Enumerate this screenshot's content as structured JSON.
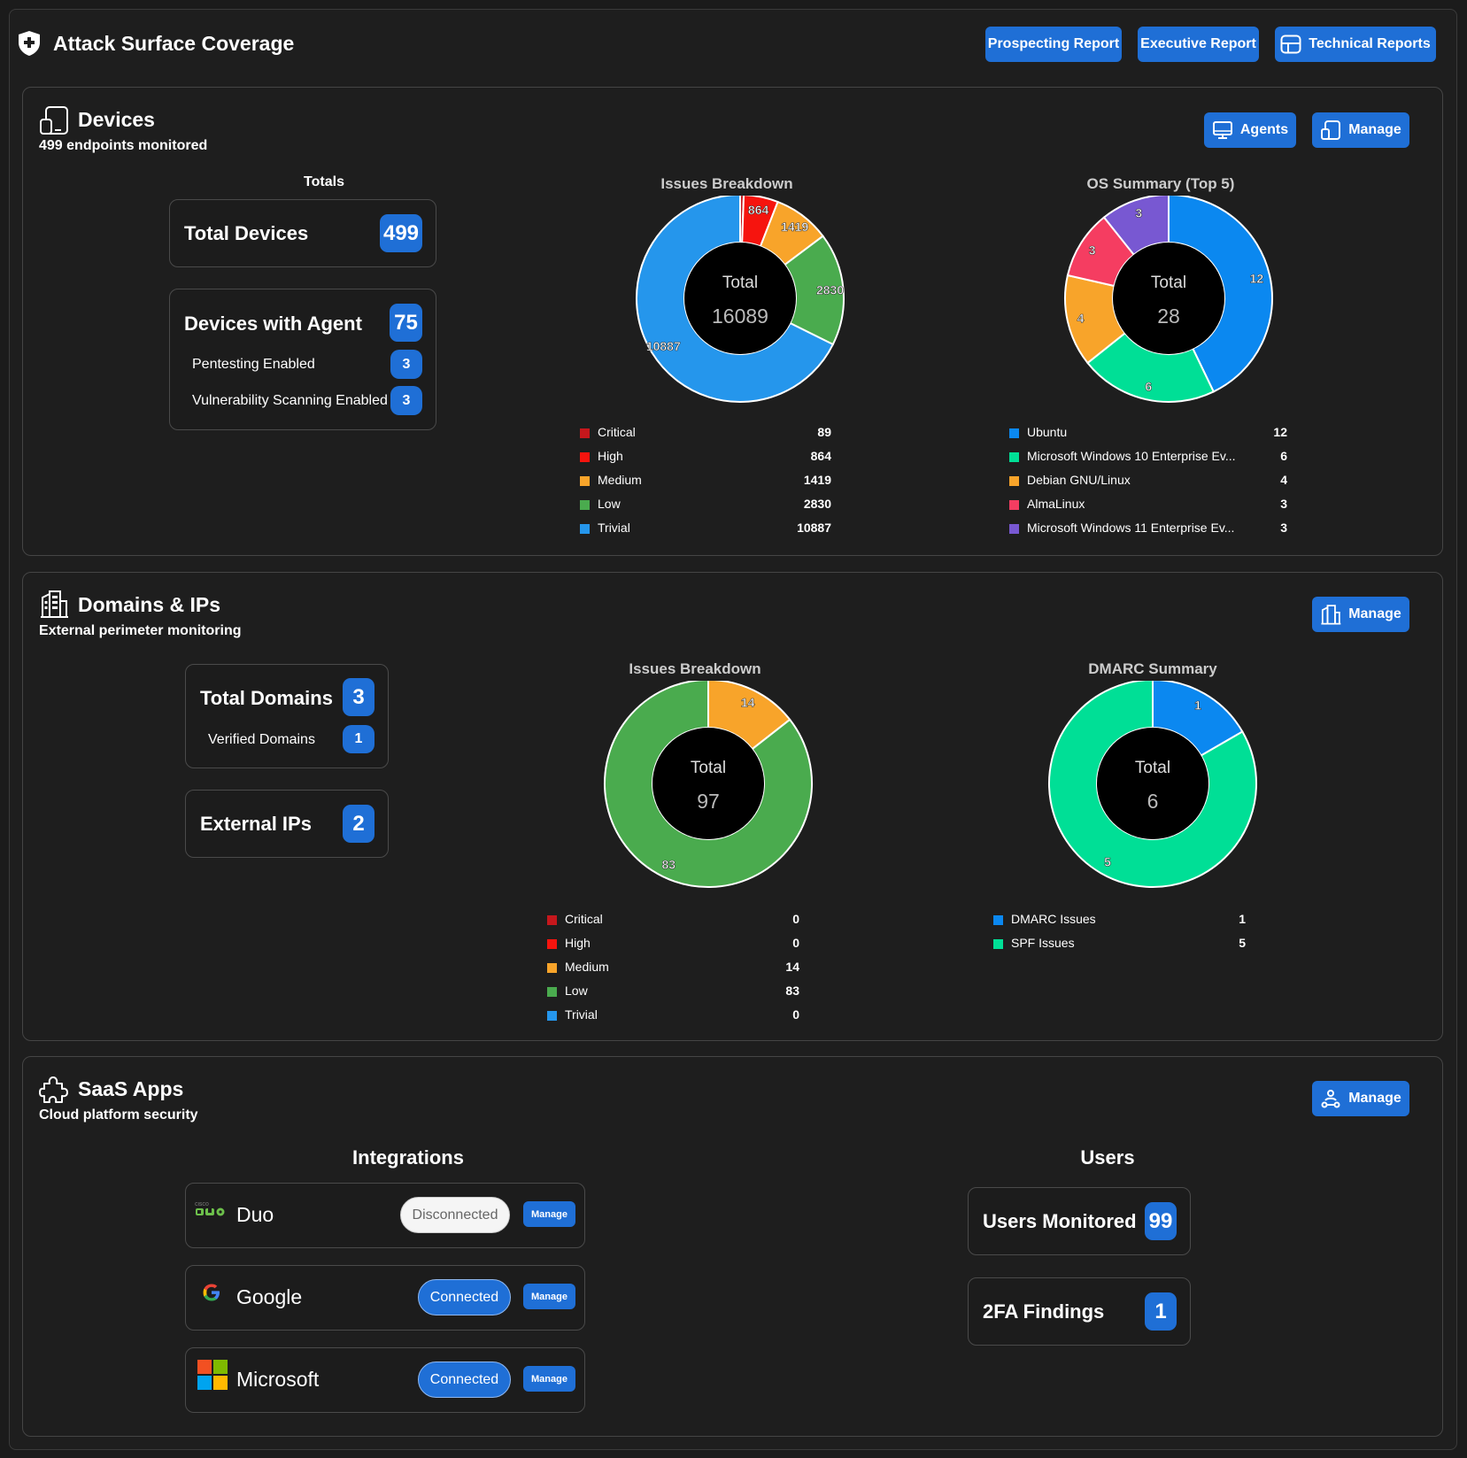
{
  "header": {
    "title": "Attack Surface Coverage",
    "buttons": {
      "prospecting": "Prospecting Report",
      "executive": "Executive Report",
      "technical": "Technical Reports"
    }
  },
  "devices": {
    "title": "Devices",
    "subtitle": "499 endpoints monitored",
    "agents_label": "Agents",
    "manage_label": "Manage",
    "totals_heading": "Totals",
    "total_devices_label": "Total Devices",
    "total_devices_value": "499",
    "with_agent_label": "Devices with Agent",
    "with_agent_value": "75",
    "pentesting_label": "Pentesting Enabled",
    "pentesting_value": "3",
    "vuln_label": "Vulnerability Scanning Enabled",
    "vuln_value": "3"
  },
  "domains": {
    "title": "Domains & IPs",
    "subtitle": "External perimeter monitoring",
    "manage_label": "Manage",
    "total_domains_label": "Total Domains",
    "total_domains_value": "3",
    "verified_label": "Verified Domains",
    "verified_value": "1",
    "external_ips_label": "External IPs",
    "external_ips_value": "2"
  },
  "saas": {
    "title": "SaaS Apps",
    "subtitle": "Cloud platform security",
    "manage_label": "Manage",
    "integrations_heading": "Integrations",
    "users_heading": "Users",
    "integrations": [
      {
        "name": "Duo",
        "status": "Disconnected",
        "manage": "Manage",
        "logo": "duo-logo"
      },
      {
        "name": "Google",
        "status": "Connected",
        "manage": "Manage",
        "logo": "google-logo"
      },
      {
        "name": "Microsoft",
        "status": "Connected",
        "manage": "Manage",
        "logo": "microsoft-logo"
      }
    ],
    "users_monitored_label": "Users Monitored",
    "users_monitored_value": "99",
    "twofa_label": "2FA Findings",
    "twofa_value": "1"
  },
  "colors": {
    "accent": "#1f6fd6",
    "critical": "#c6171c",
    "high": "#f6140e",
    "medium": "#f8a42a",
    "low": "#4aab4e",
    "trivial": "#2596ec",
    "teal": "#00df96",
    "pink": "#f53d61",
    "purple": "#7858d2"
  },
  "chart_data": [
    {
      "type": "pie",
      "title": "Issues Breakdown",
      "center_label": "Total",
      "total": "16089",
      "slices": [
        {
          "name": "Critical",
          "value": 89,
          "color": "#c6171c"
        },
        {
          "name": "High",
          "value": 864,
          "color": "#f6140e"
        },
        {
          "name": "Medium",
          "value": 1419,
          "color": "#f8a42a"
        },
        {
          "name": "Low",
          "value": 2830,
          "color": "#4aab4e"
        },
        {
          "name": "Trivial",
          "value": 10887,
          "color": "#2596ec"
        }
      ]
    },
    {
      "type": "pie",
      "title": "OS Summary (Top 5)",
      "center_label": "Total",
      "total": "28",
      "slices": [
        {
          "name": "Ubuntu",
          "value": 12,
          "color": "#0b88f0"
        },
        {
          "name": "Microsoft Windows 10 Enterprise Ev...",
          "value": 6,
          "color": "#00df96"
        },
        {
          "name": "Debian GNU/Linux",
          "value": 4,
          "color": "#f8a42a"
        },
        {
          "name": "AlmaLinux",
          "value": 3,
          "color": "#f53d61"
        },
        {
          "name": "Microsoft Windows 11 Enterprise Ev...",
          "value": 3,
          "color": "#7858d2"
        }
      ]
    },
    {
      "type": "pie",
      "title": "Issues Breakdown",
      "center_label": "Total",
      "total": "97",
      "slices": [
        {
          "name": "Critical",
          "value": 0,
          "color": "#c6171c"
        },
        {
          "name": "High",
          "value": 0,
          "color": "#f6140e"
        },
        {
          "name": "Medium",
          "value": 14,
          "color": "#f8a42a"
        },
        {
          "name": "Low",
          "value": 83,
          "color": "#4aab4e"
        },
        {
          "name": "Trivial",
          "value": 0,
          "color": "#2596ec"
        }
      ]
    },
    {
      "type": "pie",
      "title": "DMARC Summary",
      "center_label": "Total",
      "total": "6",
      "slices": [
        {
          "name": "DMARC Issues",
          "value": 1,
          "color": "#0b88f0"
        },
        {
          "name": "SPF Issues",
          "value": 5,
          "color": "#00df96"
        }
      ]
    }
  ]
}
